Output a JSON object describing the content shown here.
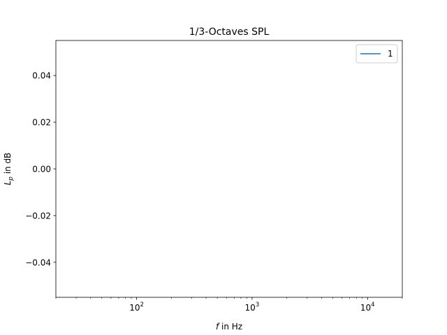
{
  "chart_data": {
    "type": "line",
    "title": "1/3-Octaves SPL",
    "xlabel": {
      "var": "f",
      "rest": " in Hz"
    },
    "ylabel": {
      "var": "L",
      "sub": "p",
      "rest": " in dB"
    },
    "xscale": "log",
    "xlim": [
      20,
      20000
    ],
    "ylim": [
      -0.055,
      0.055
    ],
    "x_ticks": [
      {
        "value": 100,
        "base": "10",
        "exp": "2"
      },
      {
        "value": 1000,
        "base": "10",
        "exp": "3"
      },
      {
        "value": 10000,
        "base": "10",
        "exp": "4"
      }
    ],
    "y_ticks": [
      {
        "value": 0.04,
        "label": "0.04"
      },
      {
        "value": 0.02,
        "label": "0.02"
      },
      {
        "value": 0.0,
        "label": "0.00"
      },
      {
        "value": -0.02,
        "label": "−0.02"
      },
      {
        "value": -0.04,
        "label": "−0.04"
      }
    ],
    "grid": false,
    "legend_position": "top-right",
    "series": [
      {
        "name": "1",
        "color": "#1f77b4",
        "x": [],
        "y": []
      }
    ]
  }
}
